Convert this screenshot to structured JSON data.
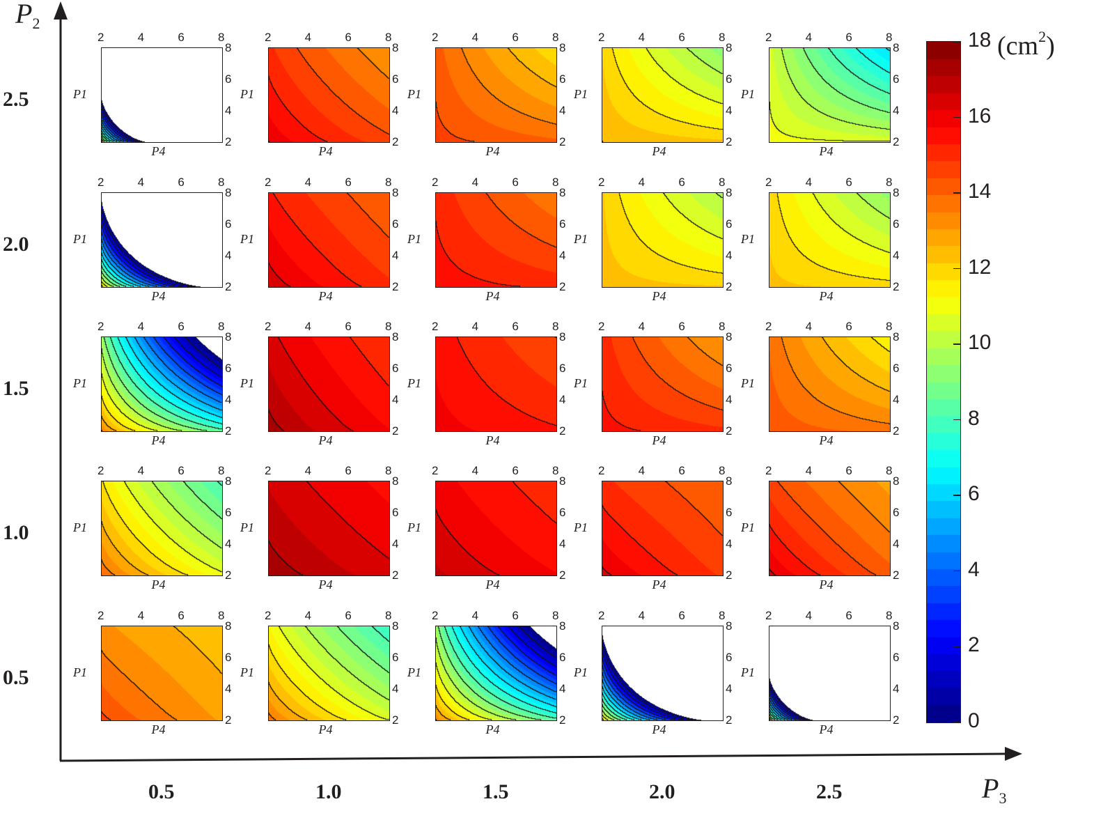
{
  "chart_data": {
    "type": "heatmap",
    "title": "",
    "description": "5x5 grid of filled contour plots; each panel shows a quantity (cm^2) over P4 (x) and P1 (y), grid rows indexed by P2 and columns by P3",
    "outer_axes": {
      "x_label": "P",
      "x_label_sub": "3",
      "y_label": "P",
      "y_label_sub": "2",
      "x_ticks": [
        "0.5",
        "1.0",
        "1.5",
        "2.0",
        "2.5"
      ],
      "y_ticks": [
        "2.5",
        "2.0",
        "1.5",
        "1.0",
        "0.5"
      ]
    },
    "panel_axes": {
      "x_label": "P4",
      "y_label": "P1",
      "x_ticks": [
        "2",
        "4",
        "6",
        "8"
      ],
      "y_ticks": [
        "8",
        "6",
        "4",
        "2"
      ],
      "x_range": [
        2,
        8
      ],
      "y_range": [
        2,
        8
      ]
    },
    "colorbar": {
      "label": "(cm",
      "label_sup": "2",
      "label_close": ")",
      "range": [
        0,
        18
      ],
      "ticks": [
        "18",
        "16",
        "14",
        "12",
        "10",
        "8",
        "6",
        "4",
        "2",
        "0"
      ],
      "colormap": "jet"
    },
    "corner_value_order": "[P4=2,P1=2], [P4=8,P1=2], [P4=2,P1=8], [P4=8,P1=8]; negative = blank (white)",
    "panels": [
      {
        "P2": 2.5,
        "P3": 0.5,
        "corners": [
          11.0,
          -14.0,
          -10.0,
          -60.0
        ]
      },
      {
        "P2": 2.5,
        "P3": 1.0,
        "corners": [
          16.2,
          14.6,
          15.0,
          13.1
        ]
      },
      {
        "P2": 2.5,
        "P3": 1.5,
        "corners": [
          14.6,
          14.1,
          14.2,
          11.8
        ]
      },
      {
        "P2": 2.5,
        "P3": 2.0,
        "corners": [
          12.6,
          12.3,
          12.1,
          9.2
        ]
      },
      {
        "P2": 2.5,
        "P3": 2.5,
        "corners": [
          11.0,
          10.8,
          10.6,
          6.2
        ]
      },
      {
        "P2": 2.0,
        "P3": 0.5,
        "corners": [
          12.0,
          -2.0,
          -1.0,
          -30.0
        ]
      },
      {
        "P2": 2.0,
        "P3": 1.0,
        "corners": [
          16.6,
          15.0,
          15.4,
          14.0
        ]
      },
      {
        "P2": 2.0,
        "P3": 1.5,
        "corners": [
          15.6,
          15.2,
          15.2,
          13.6
        ]
      },
      {
        "P2": 2.0,
        "P3": 2.0,
        "corners": [
          12.4,
          12.2,
          12.2,
          9.8
        ]
      },
      {
        "P2": 2.0,
        "P3": 2.5,
        "corners": [
          12.3,
          12.0,
          12.0,
          9.3
        ]
      },
      {
        "P2": 1.5,
        "P3": 0.5,
        "corners": [
          13.5,
          8.5,
          9.5,
          -2.0
        ]
      },
      {
        "P2": 1.5,
        "P3": 1.0,
        "corners": [
          17.4,
          15.8,
          16.4,
          14.9
        ]
      },
      {
        "P2": 1.5,
        "P3": 1.5,
        "corners": [
          16.0,
          15.4,
          15.6,
          14.4
        ]
      },
      {
        "P2": 1.5,
        "P3": 2.0,
        "corners": [
          15.5,
          15.0,
          15.1,
          13.0
        ]
      },
      {
        "P2": 1.5,
        "P3": 2.5,
        "corners": [
          14.3,
          13.8,
          13.9,
          11.4
        ]
      },
      {
        "P2": 1.0,
        "P3": 0.5,
        "corners": [
          14.0,
          11.0,
          11.8,
          8.0
        ]
      },
      {
        "P2": 1.0,
        "P3": 1.0,
        "corners": [
          17.5,
          16.4,
          16.6,
          15.6
        ]
      },
      {
        "P2": 1.0,
        "P3": 1.5,
        "corners": [
          16.8,
          15.8,
          16.0,
          15.0
        ]
      },
      {
        "P2": 1.0,
        "P3": 2.0,
        "corners": [
          16.4,
          14.8,
          15.0,
          14.0
        ]
      },
      {
        "P2": 1.0,
        "P3": 2.5,
        "corners": [
          16.4,
          14.2,
          14.6,
          12.9
        ]
      },
      {
        "P2": 0.5,
        "P3": 0.5,
        "corners": [
          14.6,
          13.0,
          13.2,
          12.3
        ]
      },
      {
        "P2": 0.5,
        "P3": 1.0,
        "corners": [
          13.8,
          10.8,
          11.3,
          7.7
        ]
      },
      {
        "P2": 0.5,
        "P3": 1.5,
        "corners": [
          13.5,
          8.5,
          9.5,
          -2.0
        ]
      },
      {
        "P2": 0.5,
        "P3": 2.0,
        "corners": [
          12.0,
          -2.0,
          -1.0,
          -30.0
        ]
      },
      {
        "P2": 0.5,
        "P3": 2.5,
        "corners": [
          11.0,
          -14.0,
          -10.0,
          -60.0
        ]
      }
    ]
  }
}
